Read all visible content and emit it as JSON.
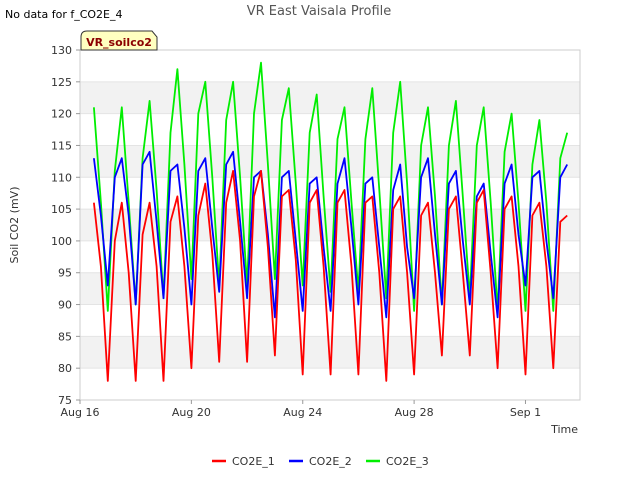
{
  "page": {
    "no_data_note": "No data for f_CO2E_4",
    "badge": "VR_soilco2"
  },
  "chart_data": {
    "type": "line",
    "title": "VR East Vaisala Profile",
    "xlabel": "Time",
    "ylabel": "Soil CO2 (mV)",
    "ylim": [
      75,
      130
    ],
    "yticks": [
      75,
      80,
      85,
      90,
      95,
      100,
      105,
      110,
      115,
      120,
      125,
      130
    ],
    "xlim": [
      "2016-08-16",
      "2016-09-02T23:00"
    ],
    "xticks": [
      {
        "date": "2016-08-16",
        "label": "Aug 16"
      },
      {
        "date": "2016-08-20",
        "label": "Aug 20"
      },
      {
        "date": "2016-08-24",
        "label": "Aug 24"
      },
      {
        "date": "2016-08-28",
        "label": "Aug 28"
      },
      {
        "date": "2016-09-01",
        "label": "Sep 1"
      }
    ],
    "grid": "horizontal bands",
    "legend_position": "bottom",
    "start": "2016-08-16T12:00",
    "step_hours": 6,
    "series": [
      {
        "name": "CO2E_1",
        "color": "#ff0000",
        "values": [
          106,
          96,
          78,
          100,
          106,
          95,
          78,
          101,
          106,
          96,
          78,
          103,
          107,
          96,
          80,
          104,
          109,
          98,
          81,
          106,
          111,
          100,
          81,
          107,
          111,
          99,
          82,
          107,
          108,
          97,
          79,
          106,
          108,
          96,
          79,
          106,
          108,
          96,
          79,
          106,
          107,
          95,
          78,
          105,
          107,
          95,
          79,
          104,
          106,
          95,
          82,
          105,
          107,
          95,
          82,
          106,
          108,
          95,
          80,
          105,
          107,
          96,
          79,
          104,
          106,
          96,
          80,
          103,
          104
        ]
      },
      {
        "name": "CO2E_2",
        "color": "#0000ff",
        "values": [
          113,
          104,
          93,
          110,
          113,
          104,
          90,
          112,
          114,
          103,
          91,
          111,
          112,
          102,
          90,
          111,
          113,
          102,
          92,
          112,
          114,
          103,
          91,
          110,
          111,
          101,
          88,
          110,
          111,
          100,
          89,
          109,
          110,
          99,
          89,
          109,
          113,
          102,
          90,
          109,
          110,
          99,
          88,
          108,
          112,
          99,
          91,
          110,
          113,
          101,
          90,
          109,
          111,
          100,
          90,
          107,
          109,
          98,
          88,
          109,
          112,
          101,
          93,
          110,
          111,
          100,
          91,
          110,
          112
        ]
      },
      {
        "name": "CO2E_3",
        "color": "#00ee00",
        "values": [
          121,
          106,
          89,
          111,
          121,
          106,
          90,
          113,
          122,
          108,
          91,
          117,
          127,
          112,
          94,
          120,
          125,
          110,
          93,
          119,
          125,
          110,
          93,
          120,
          128,
          112,
          94,
          119,
          124,
          109,
          93,
          117,
          123,
          107,
          92,
          116,
          121,
          106,
          92,
          116,
          124,
          108,
          91,
          117,
          125,
          109,
          89,
          115,
          121,
          107,
          90,
          115,
          122,
          107,
          91,
          115,
          121,
          106,
          89,
          114,
          120,
          106,
          89,
          112,
          119,
          106,
          89,
          113,
          117
        ]
      }
    ]
  }
}
